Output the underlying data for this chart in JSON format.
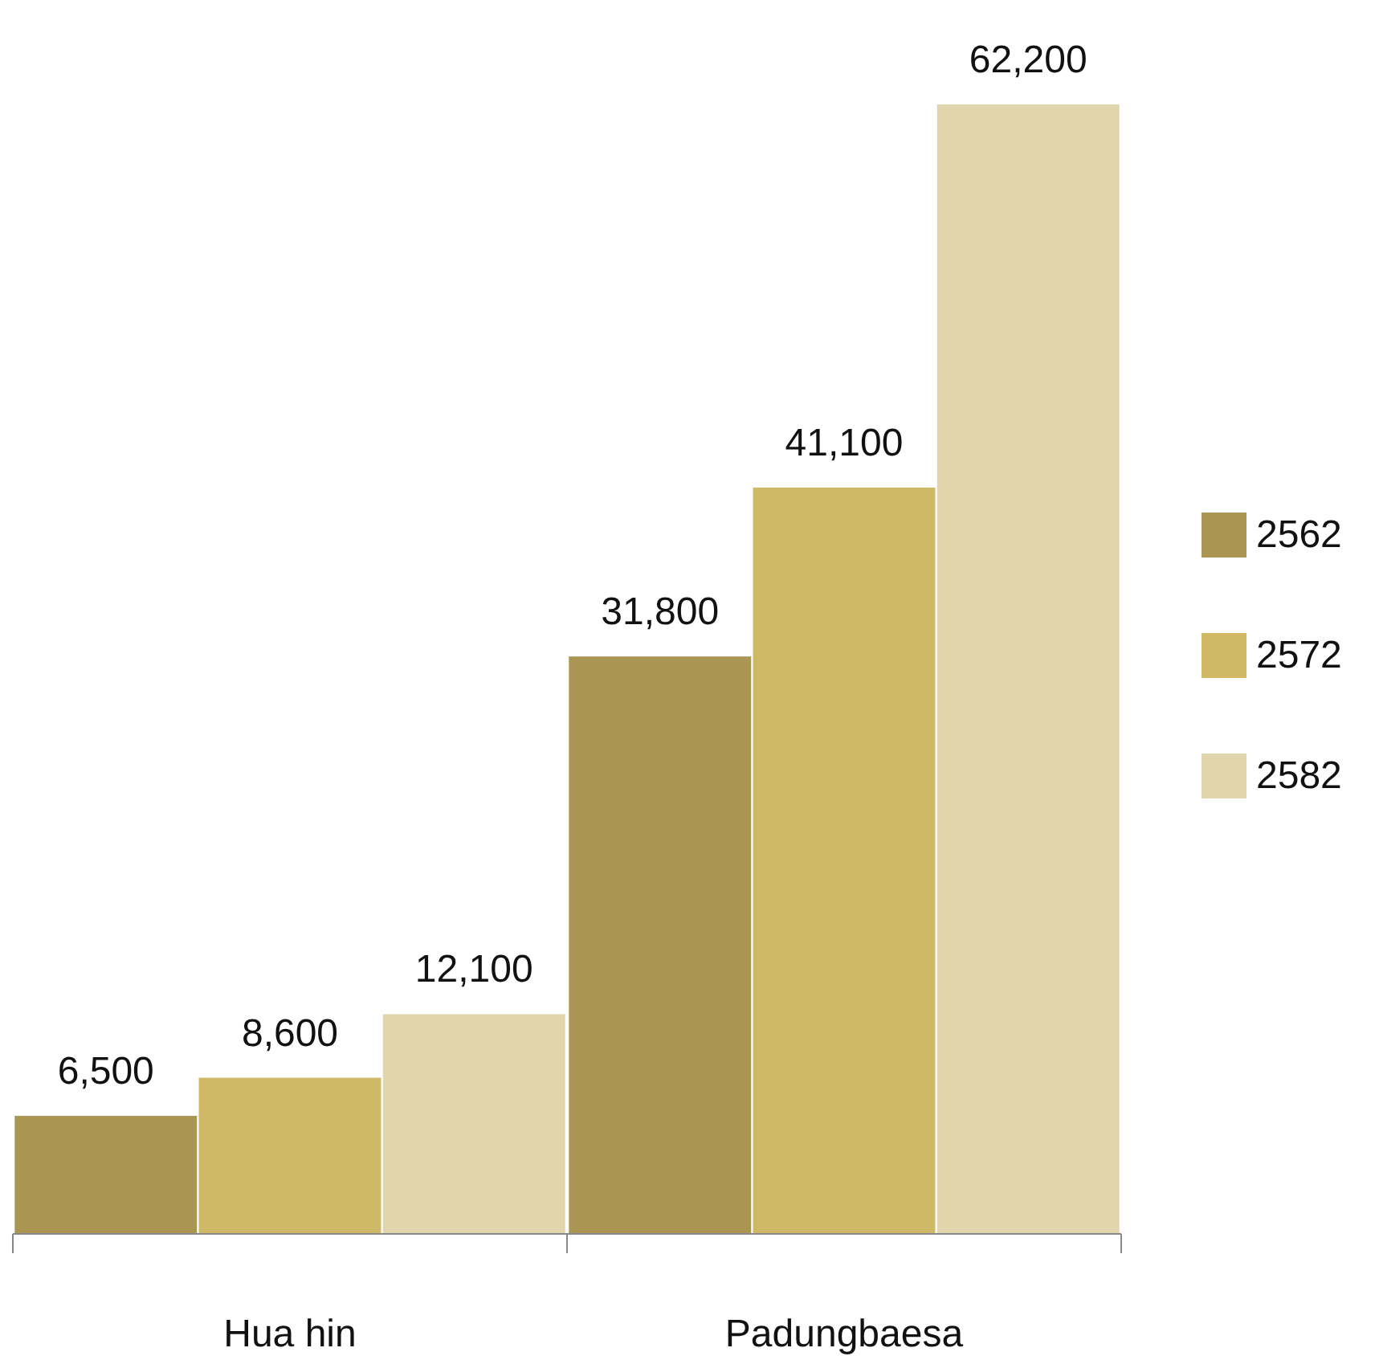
{
  "chart_data": {
    "type": "bar",
    "categories": [
      "Hua hin",
      "Padungbaesa"
    ],
    "series": [
      {
        "name": "2562",
        "color": "#ab9553",
        "values": [
          6500,
          31800
        ],
        "value_labels": [
          "6,500",
          "31,800"
        ]
      },
      {
        "name": "2572",
        "color": "#cfb866",
        "values": [
          8600,
          41100
        ],
        "value_labels": [
          "8,600",
          "41,100"
        ]
      },
      {
        "name": "2582",
        "color": "#e1d5ae",
        "values": [
          12100,
          62200
        ],
        "value_labels": [
          "12,100",
          "62,200"
        ]
      }
    ],
    "legend": "right"
  }
}
